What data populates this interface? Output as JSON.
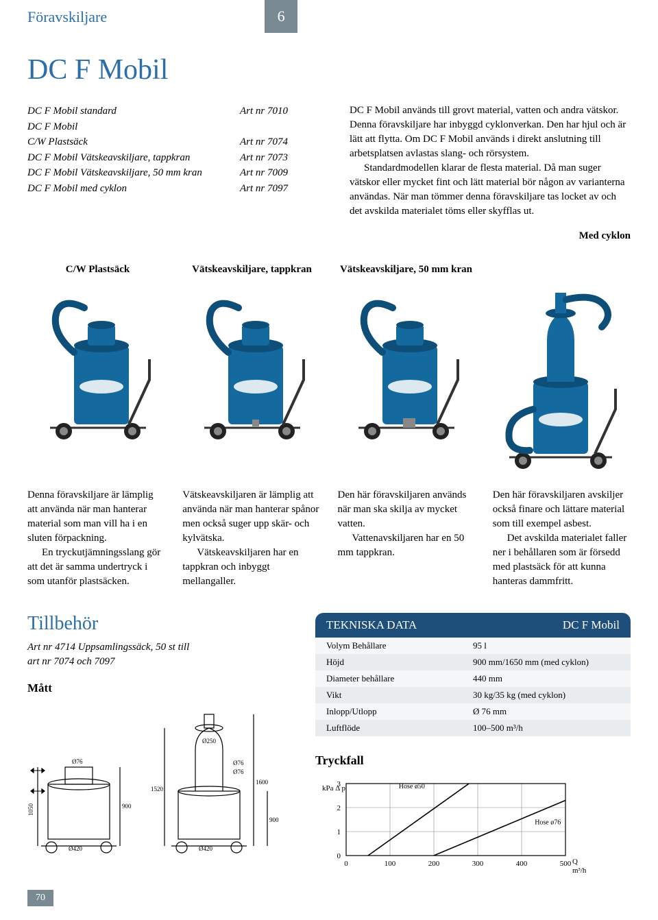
{
  "header": {
    "title": "Föravskiljare",
    "number": "6"
  },
  "main_title": "DC F Mobil",
  "articles": [
    {
      "name": "DC F Mobil standard",
      "artnr": "Art nr 7010"
    },
    {
      "name": "DC F Mobil",
      "artnr": ""
    },
    {
      "name": "C/W Plastsäck",
      "artnr": "Art nr 7074"
    },
    {
      "name": "DC F Mobil Vätskeavskiljare, tappkran",
      "artnr": "Art nr 7073"
    },
    {
      "name": "DC F Mobil Vätskeavskiljare, 50 mm kran",
      "artnr": "Art nr 7009"
    },
    {
      "name": "DC F Mobil med cyklon",
      "artnr": "Art nr 7097"
    }
  ],
  "intro": {
    "p1": "DC F Mobil används till grovt material, vatten och andra vätskor. Denna föravskiljare har inbyggd cyklonverkan. Den har hjul och är lätt att flytta. Om DC F Mobil används i direkt anslutning till arbetsplatsen avlastas slang- och rörsystem.",
    "p2": "Standardmodellen klarar de flesta material. Då man suger vätskor eller mycket fint och lätt material bör någon av varianterna användas. När man tömmer denna föravskiljare tas locket av och det avskilda materialet töms eller skyfflas ut."
  },
  "med_cyklon": "Med cyklon",
  "products": [
    {
      "caption": "C/W Plastsäck"
    },
    {
      "caption": "Vätskeavskiljare, tappkran"
    },
    {
      "caption": "Vätskeavskiljare, 50 mm kran"
    },
    {
      "caption": ""
    }
  ],
  "desc": [
    {
      "p1": "Denna föravskiljare är lämplig att använda när man hanterar material som man vill ha i en sluten förpackning.",
      "p2": "En tryckutjämningsslang gör att det är samma undertryck i som utanför plastsäcken."
    },
    {
      "p1": "Vätskeavskiljaren är lämplig att använda när man hanterar spånor men också suger upp skär- och kylvätska.",
      "p2": "Vätskeavskiljaren har en tappkran och inbyggt mellangaller."
    },
    {
      "p1": "Den här föravskiljaren används när man ska skilja av mycket vatten.",
      "p2": "Vattenavskiljaren har en 50 mm tappkran."
    },
    {
      "p1": "Den här föravskiljaren avskiljer också finare och lättare material som till exempel asbest.",
      "p2": "Det avskilda materialet faller ner i behållaren som är försedd med plastsäck för att kunna hanteras dammfritt."
    }
  ],
  "tillbehor": "Tillbehör",
  "accessory": {
    "line1": "Art nr 4714  Uppsamlingssäck, 50 st till",
    "line2": "art nr 7074 och 7097"
  },
  "matt": "Mått",
  "tech": {
    "head_left": "TEKNISKA DATA",
    "head_right": "DC F Mobil",
    "rows": [
      {
        "label": "Volym Behållare",
        "value": "95 l"
      },
      {
        "label": "Höjd",
        "value": "900 mm/1650 mm (med cyklon)"
      },
      {
        "label": "Diameter behållare",
        "value": "440 mm"
      },
      {
        "label": "Vikt",
        "value": "30 kg/35 kg (med cyklon)"
      },
      {
        "label": "Inlopp/Utlopp",
        "value": "Ø 76 mm"
      },
      {
        "label": "Luftflöde",
        "value": "100–500 m³/h"
      }
    ]
  },
  "tryckfall": {
    "title": "Tryckfall",
    "ylabel": "kPa   Δ p",
    "xlabel": "Q\nm³/h",
    "xticks": [
      0,
      100,
      200,
      300,
      400,
      500
    ],
    "yticks": [
      0,
      1,
      2,
      3
    ],
    "lines": [
      {
        "label": "Hose ø50",
        "points": [
          [
            50,
            0
          ],
          [
            280,
            3
          ]
        ]
      },
      {
        "label": "Hose ø76",
        "points": [
          [
            200,
            0
          ],
          [
            500,
            2.3
          ]
        ]
      }
    ],
    "grid_color": "#888",
    "line_color": "#000",
    "bg": "#ffffff"
  },
  "page_num": "70",
  "colors": {
    "blue": "#2c6fa8",
    "dark_blue": "#1e4f7a",
    "gray": "#7a8a92",
    "machine": "#146a9e",
    "machine_dark": "#0d4f78"
  }
}
